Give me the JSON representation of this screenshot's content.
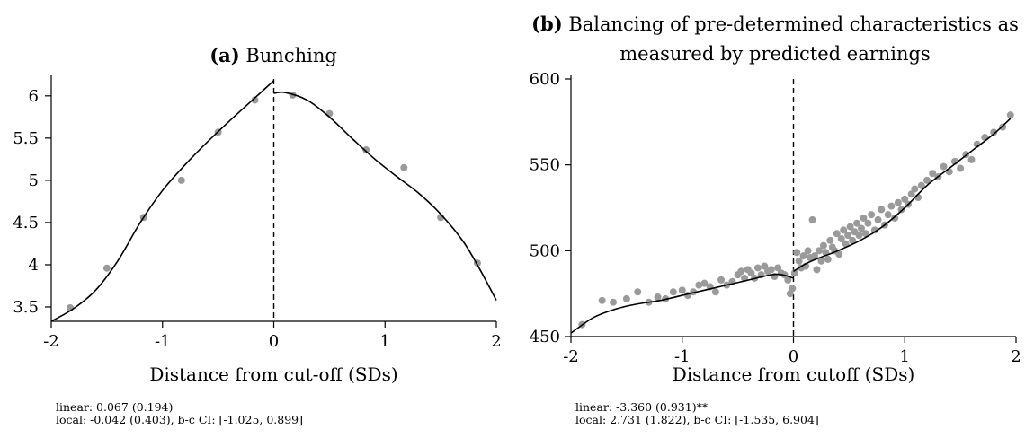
{
  "chart_data": [
    {
      "type": "scatter",
      "title_lead": "(a)",
      "title": "Bunching",
      "subtitle": "",
      "xlabel": "Distance from cut-off (SDs)",
      "ylabel": "",
      "xlim": [
        -2,
        2
      ],
      "ylim": [
        3.33,
        6.2
      ],
      "xticks": [
        -2,
        -1,
        0,
        1,
        2
      ],
      "yticks": [
        3.5,
        4,
        4.5,
        5,
        5.5,
        6
      ],
      "ytick_labels": [
        "3.5",
        "4",
        "4.5",
        "5",
        "5.5",
        "6"
      ],
      "cutoff": 0,
      "series": [
        {
          "kind": "points",
          "x": [
            -1.83,
            -1.5,
            -1.17,
            -0.83,
            -0.5,
            -0.17,
            0.17,
            0.5,
            0.83,
            1.17,
            1.5,
            1.83
          ],
          "y": [
            3.49,
            3.96,
            4.56,
            5.0,
            5.57,
            5.95,
            6.01,
            5.79,
            5.36,
            5.15,
            4.56,
            4.02
          ]
        },
        {
          "kind": "fit-left",
          "x": [
            -2.0,
            -1.8,
            -1.6,
            -1.4,
            -1.2,
            -1.0,
            -0.8,
            -0.6,
            -0.4,
            -0.2,
            0.0
          ],
          "y": [
            3.33,
            3.48,
            3.7,
            4.05,
            4.5,
            4.88,
            5.18,
            5.45,
            5.7,
            5.94,
            6.18
          ]
        },
        {
          "kind": "fit-right",
          "x": [
            0.0,
            0.1,
            0.3,
            0.5,
            0.7,
            0.9,
            1.1,
            1.3,
            1.5,
            1.7,
            1.85,
            2.0
          ],
          "y": [
            6.03,
            6.04,
            5.95,
            5.75,
            5.5,
            5.26,
            5.05,
            4.85,
            4.6,
            4.28,
            3.95,
            3.58
          ]
        }
      ],
      "note_lines": [
        "linear: 0.067 (0.194)",
        "local: -0.042 (0.403), b-c CI: [-1.025, 0.899]"
      ]
    },
    {
      "type": "scatter",
      "title_lead": "(b)",
      "title": "Balancing of pre-determined characteristics as",
      "subtitle": "measured by predicted earnings",
      "xlabel": "Distance from cutoff (SDs)",
      "ylabel": "",
      "xlim": [
        -2,
        2
      ],
      "ylim": [
        450,
        600
      ],
      "xticks": [
        -2,
        -1,
        0,
        1,
        2
      ],
      "yticks": [
        450,
        500,
        550,
        600
      ],
      "ytick_labels": [
        "450",
        "500",
        "550",
        "600"
      ],
      "cutoff": 0,
      "series": [
        {
          "kind": "points",
          "x": [
            -1.9,
            -1.72,
            -1.62,
            -1.5,
            -1.4,
            -1.3,
            -1.22,
            -1.15,
            -1.08,
            -1.0,
            -0.95,
            -0.9,
            -0.85,
            -0.8,
            -0.75,
            -0.7,
            -0.65,
            -0.6,
            -0.55,
            -0.5,
            -0.47,
            -0.44,
            -0.41,
            -0.38,
            -0.35,
            -0.32,
            -0.29,
            -0.26,
            -0.23,
            -0.2,
            -0.17,
            -0.14,
            -0.11,
            -0.08,
            -0.05,
            -0.03,
            -0.01,
            0.01,
            0.03,
            0.05,
            0.07,
            0.09,
            0.11,
            0.13,
            0.15,
            0.17,
            0.19,
            0.21,
            0.23,
            0.25,
            0.27,
            0.29,
            0.31,
            0.33,
            0.35,
            0.37,
            0.39,
            0.41,
            0.43,
            0.45,
            0.47,
            0.49,
            0.51,
            0.53,
            0.55,
            0.57,
            0.59,
            0.61,
            0.63,
            0.65,
            0.67,
            0.7,
            0.73,
            0.76,
            0.79,
            0.82,
            0.85,
            0.88,
            0.91,
            0.94,
            0.97,
            1.0,
            1.03,
            1.06,
            1.09,
            1.12,
            1.15,
            1.2,
            1.25,
            1.3,
            1.35,
            1.4,
            1.45,
            1.5,
            1.55,
            1.6,
            1.65,
            1.72,
            1.8,
            1.88,
            1.95
          ],
          "y": [
            457,
            471,
            470,
            472,
            476,
            470,
            473,
            472,
            476,
            477,
            474,
            476,
            480,
            481,
            479,
            476,
            483,
            480,
            482,
            486,
            488,
            484,
            489,
            487,
            484,
            490,
            486,
            491,
            488,
            489,
            485,
            490,
            487,
            486,
            483,
            475,
            478,
            487,
            499,
            494,
            490,
            497,
            491,
            500,
            496,
            518,
            497,
            489,
            500,
            494,
            503,
            499,
            495,
            506,
            502,
            500,
            510,
            498,
            507,
            512,
            504,
            509,
            514,
            506,
            511,
            516,
            509,
            513,
            519,
            510,
            516,
            521,
            512,
            518,
            524,
            515,
            521,
            526,
            519,
            528,
            524,
            530,
            527,
            533,
            536,
            531,
            538,
            541,
            545,
            543,
            549,
            546,
            552,
            548,
            556,
            553,
            562,
            566,
            569,
            572,
            579
          ]
        },
        {
          "kind": "fit-left",
          "x": [
            -2.0,
            -1.8,
            -1.6,
            -1.4,
            -1.2,
            -1.0,
            -0.8,
            -0.6,
            -0.4,
            -0.2,
            -0.1,
            0.0
          ],
          "y": [
            452,
            461,
            466,
            469,
            471,
            474,
            477,
            480,
            483,
            486,
            486,
            484
          ]
        },
        {
          "kind": "fit-right",
          "x": [
            0.0,
            0.1,
            0.2,
            0.4,
            0.6,
            0.8,
            1.0,
            1.2,
            1.4,
            1.6,
            1.8,
            1.95
          ],
          "y": [
            488,
            492,
            495,
            500,
            506,
            514,
            525,
            538,
            548,
            558,
            568,
            577
          ]
        }
      ],
      "note_lines": [
        "linear: -3.360 (0.931)**",
        "local: 2.731 (1.822), b-c CI: [-1.535, 6.904]"
      ]
    }
  ]
}
